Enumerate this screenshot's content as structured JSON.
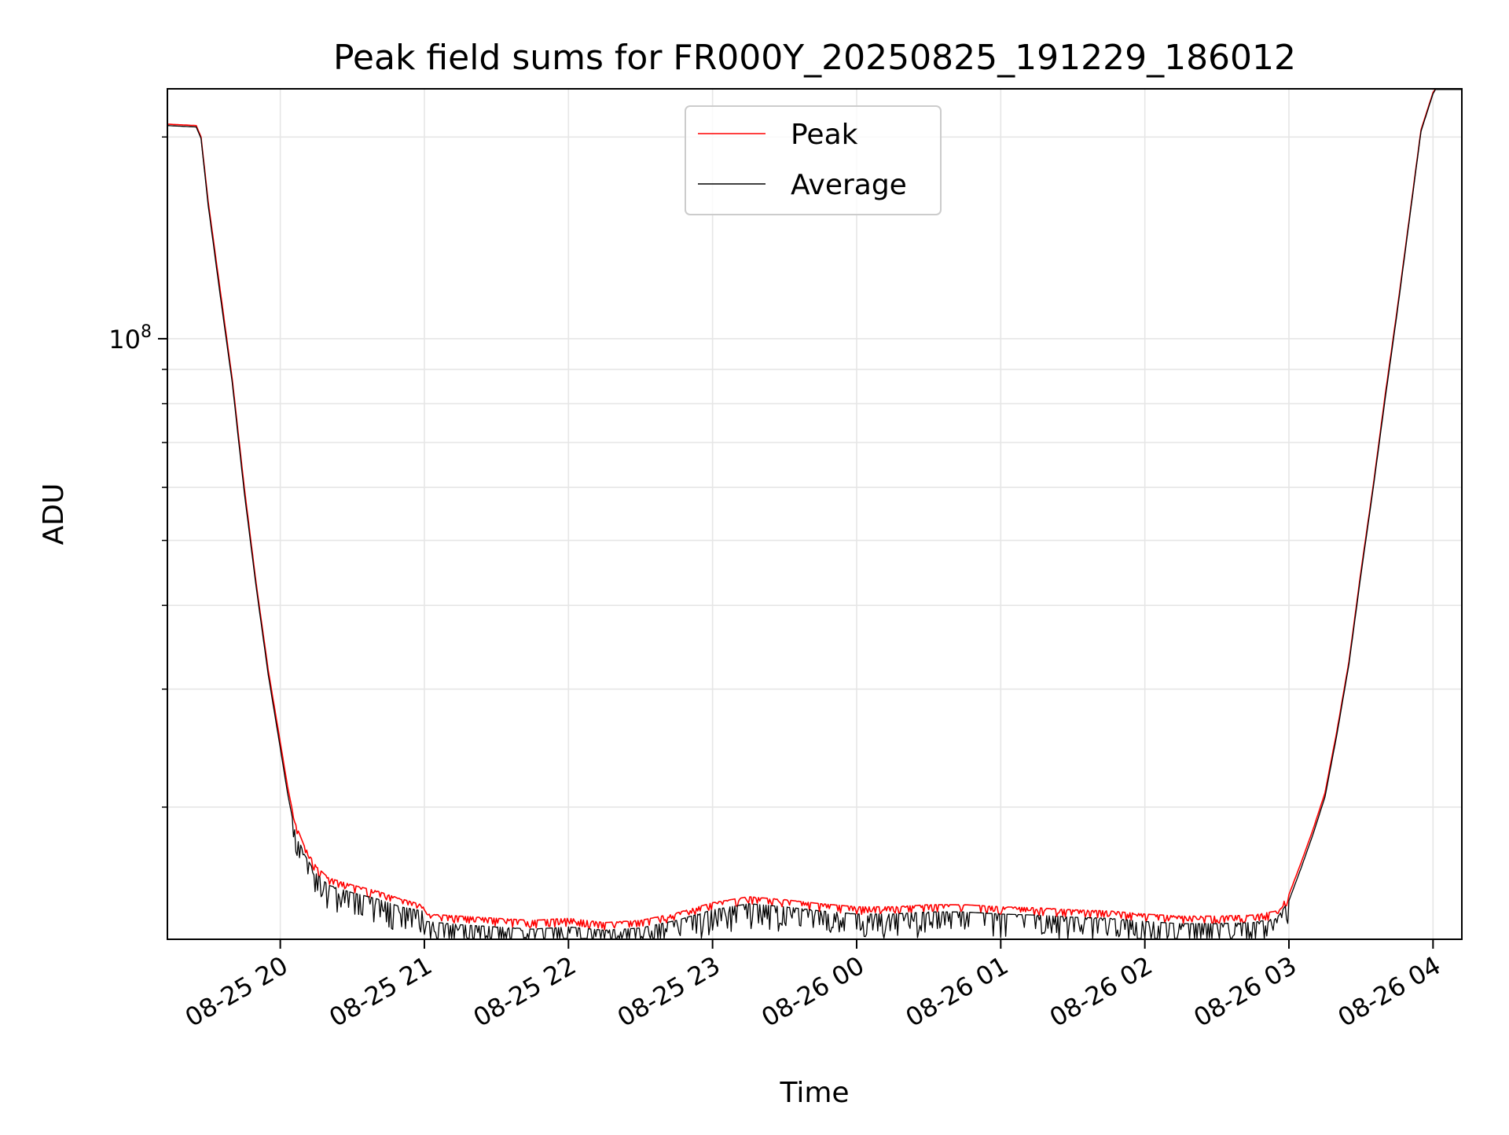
{
  "chart_data": {
    "type": "line",
    "title": "Peak field sums for FR000Y_20250825_191229_186012",
    "xlabel": "Time",
    "ylabel": "ADU",
    "yscale": "log",
    "grid": true,
    "legend_position": "top-center",
    "x_range": [
      "2025-08-25 19:13",
      "2025-08-26 04:12"
    ],
    "ylim": [
      12700000,
      236000000
    ],
    "x_ticks": [
      {
        "value": "2025-08-25 20:00",
        "label": "08-25 20"
      },
      {
        "value": "2025-08-25 21:00",
        "label": "08-25 21"
      },
      {
        "value": "2025-08-25 22:00",
        "label": "08-25 22"
      },
      {
        "value": "2025-08-25 23:00",
        "label": "08-25 23"
      },
      {
        "value": "2025-08-26 00:00",
        "label": "08-26 00"
      },
      {
        "value": "2025-08-26 01:00",
        "label": "08-26 01"
      },
      {
        "value": "2025-08-26 02:00",
        "label": "08-26 02"
      },
      {
        "value": "2025-08-26 03:00",
        "label": "08-26 03"
      },
      {
        "value": "2025-08-26 04:00",
        "label": "08-26 04"
      }
    ],
    "y_major_ticks": [
      {
        "value": 100000000,
        "base": "10",
        "exponent": "8"
      }
    ],
    "y_minor_ticks": [
      20000000,
      30000000,
      40000000,
      50000000,
      60000000,
      70000000,
      80000000,
      90000000,
      200000000
    ],
    "series": [
      {
        "name": "Peak",
        "color": "#ff0000",
        "x": [
          "2025-08-25 19:13",
          "2025-08-25 19:25",
          "2025-08-25 19:27",
          "2025-08-25 19:30",
          "2025-08-25 19:35",
          "2025-08-25 19:40",
          "2025-08-25 19:45",
          "2025-08-25 19:50",
          "2025-08-25 19:55",
          "2025-08-25 20:00",
          "2025-08-25 20:03",
          "2025-08-25 20:06",
          "2025-08-25 20:10",
          "2025-08-25 20:15",
          "2025-08-25 20:20",
          "2025-08-25 20:30",
          "2025-08-25 20:40",
          "2025-08-25 20:50",
          "2025-08-25 20:59",
          "2025-08-25 21:01",
          "2025-08-25 21:15",
          "2025-08-25 21:30",
          "2025-08-25 21:45",
          "2025-08-25 22:00",
          "2025-08-25 22:15",
          "2025-08-25 22:30",
          "2025-08-25 22:45",
          "2025-08-25 23:00",
          "2025-08-25 23:15",
          "2025-08-25 23:30",
          "2025-08-25 23:45",
          "2025-08-26 00:00",
          "2025-08-26 00:15",
          "2025-08-26 00:30",
          "2025-08-26 00:45",
          "2025-08-26 01:00",
          "2025-08-26 01:15",
          "2025-08-26 01:30",
          "2025-08-26 01:45",
          "2025-08-26 02:00",
          "2025-08-26 02:15",
          "2025-08-26 02:30",
          "2025-08-26 02:45",
          "2025-08-26 02:55",
          "2025-08-26 03:00",
          "2025-08-26 03:05",
          "2025-08-26 03:10",
          "2025-08-26 03:15",
          "2025-08-26 03:20",
          "2025-08-26 03:25",
          "2025-08-26 03:30",
          "2025-08-26 03:35",
          "2025-08-26 03:40",
          "2025-08-26 03:45",
          "2025-08-26 03:50",
          "2025-08-26 03:55",
          "2025-08-26 04:00",
          "2025-08-26 04:01",
          "2025-08-26 04:12"
        ],
        "values": [
          209000000,
          208000000,
          200000000,
          160000000,
          118000000,
          87000000,
          60000000,
          43000000,
          32000000,
          25000000,
          21500000,
          19000000,
          17500000,
          16300000,
          15700000,
          15300000,
          15000000,
          14600000,
          14300000,
          13850000,
          13750000,
          13650000,
          13550000,
          13650000,
          13450000,
          13550000,
          13900000,
          14400000,
          14700000,
          14550000,
          14350000,
          14200000,
          14200000,
          14300000,
          14300000,
          14200000,
          14150000,
          14050000,
          14000000,
          13850000,
          13750000,
          13750000,
          13800000,
          14000000,
          14800000,
          16500000,
          18500000,
          21000000,
          26000000,
          33000000,
          45000000,
          60000000,
          82000000,
          110000000,
          150000000,
          205000000,
          233000000,
          236000000,
          236000000
        ]
      },
      {
        "name": "Average",
        "color": "#000000",
        "x": [
          "2025-08-25 19:13",
          "2025-08-25 19:25",
          "2025-08-25 19:27",
          "2025-08-25 19:30",
          "2025-08-25 19:35",
          "2025-08-25 19:40",
          "2025-08-25 19:45",
          "2025-08-25 19:50",
          "2025-08-25 19:55",
          "2025-08-25 20:00",
          "2025-08-25 20:03",
          "2025-08-25 20:06",
          "2025-08-25 20:10",
          "2025-08-25 20:15",
          "2025-08-25 20:20",
          "2025-08-25 20:30",
          "2025-08-25 20:40",
          "2025-08-25 20:50",
          "2025-08-25 20:59",
          "2025-08-25 21:01",
          "2025-08-25 21:15",
          "2025-08-25 21:30",
          "2025-08-25 21:45",
          "2025-08-25 22:00",
          "2025-08-25 22:15",
          "2025-08-25 22:30",
          "2025-08-25 22:45",
          "2025-08-25 23:00",
          "2025-08-25 23:15",
          "2025-08-25 23:30",
          "2025-08-25 23:45",
          "2025-08-26 00:00",
          "2025-08-26 00:15",
          "2025-08-26 00:30",
          "2025-08-26 00:45",
          "2025-08-26 01:00",
          "2025-08-26 01:15",
          "2025-08-26 01:30",
          "2025-08-26 01:45",
          "2025-08-26 02:00",
          "2025-08-26 02:15",
          "2025-08-26 02:30",
          "2025-08-26 02:45",
          "2025-08-26 02:55",
          "2025-08-26 03:00",
          "2025-08-26 03:05",
          "2025-08-26 03:10",
          "2025-08-26 03:15",
          "2025-08-26 03:20",
          "2025-08-26 03:25",
          "2025-08-26 03:30",
          "2025-08-26 03:35",
          "2025-08-26 03:40",
          "2025-08-26 03:45",
          "2025-08-26 03:50",
          "2025-08-26 03:55",
          "2025-08-26 04:00",
          "2025-08-26 04:01",
          "2025-08-26 04:12"
        ],
        "values": [
          208000000,
          207000000,
          199000000,
          158000000,
          116000000,
          86000000,
          59000000,
          42500000,
          31500000,
          24500000,
          21000000,
          18500000,
          17000000,
          15900000,
          15300000,
          14900000,
          14600000,
          14200000,
          14000000,
          13500000,
          13350000,
          13250000,
          13150000,
          13250000,
          13100000,
          13200000,
          13550000,
          14050000,
          14350000,
          14200000,
          14000000,
          13850000,
          13850000,
          13950000,
          13950000,
          13850000,
          13800000,
          13700000,
          13650000,
          13500000,
          13400000,
          13400000,
          13450000,
          13650000,
          14500000,
          16200000,
          18200000,
          20700000,
          25700000,
          32700000,
          44500000,
          59500000,
          81000000,
          109000000,
          149000000,
          204000000,
          232000000,
          235500000,
          235500000
        ]
      }
    ]
  }
}
